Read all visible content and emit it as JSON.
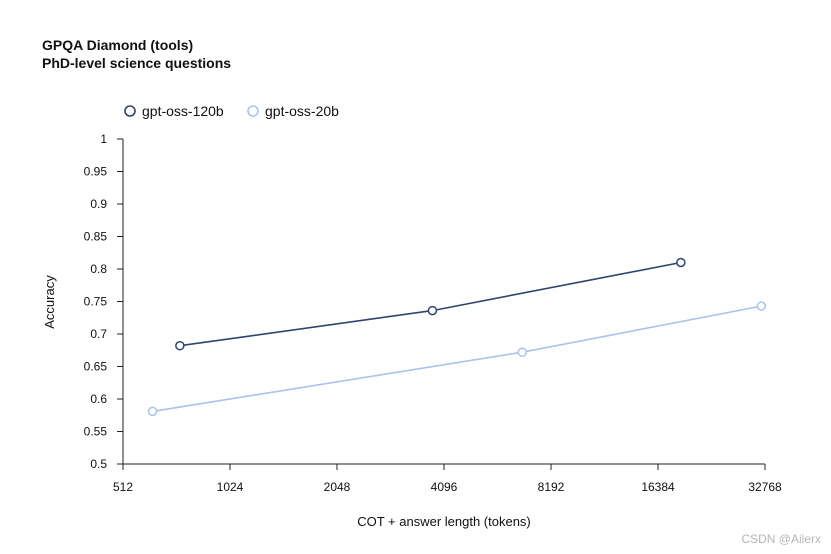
{
  "chart_data": {
    "type": "line",
    "title": "GPQA Diamond (tools)",
    "subtitle": "PhD-level science questions",
    "xlabel": "COT + answer length (tokens)",
    "ylabel": "Accuracy",
    "x_scale": "log2",
    "xlim": [
      512,
      32768
    ],
    "ylim": [
      0.5,
      1
    ],
    "x_ticks": [
      512,
      1024,
      2048,
      4096,
      8192,
      16384,
      32768
    ],
    "x_tick_labels": [
      "512",
      "1024",
      "2048",
      "4096",
      "8192",
      "16384",
      "32768"
    ],
    "y_ticks": [
      0.5,
      0.55,
      0.6,
      0.65,
      0.7,
      0.75,
      0.8,
      0.85,
      0.9,
      0.95,
      1
    ],
    "y_tick_labels": [
      "0.5",
      "0.55",
      "0.6",
      "0.65",
      "0.7",
      "0.75",
      "0.8",
      "0.85",
      "0.9",
      "0.95",
      "1"
    ],
    "grid": false,
    "legend_position": "top-left",
    "series": [
      {
        "name": "gpt-oss-120b",
        "color": "#2e4470",
        "points": [
          {
            "x": 740,
            "y": 0.682
          },
          {
            "x": 3800,
            "y": 0.736
          },
          {
            "x": 19000,
            "y": 0.81
          }
        ]
      },
      {
        "name": "gpt-oss-20b",
        "color": "#a9c3ee",
        "points": [
          {
            "x": 620,
            "y": 0.581
          },
          {
            "x": 6800,
            "y": 0.672
          },
          {
            "x": 32000,
            "y": 0.743
          }
        ]
      }
    ]
  },
  "watermark": "CSDN @Ailerx"
}
